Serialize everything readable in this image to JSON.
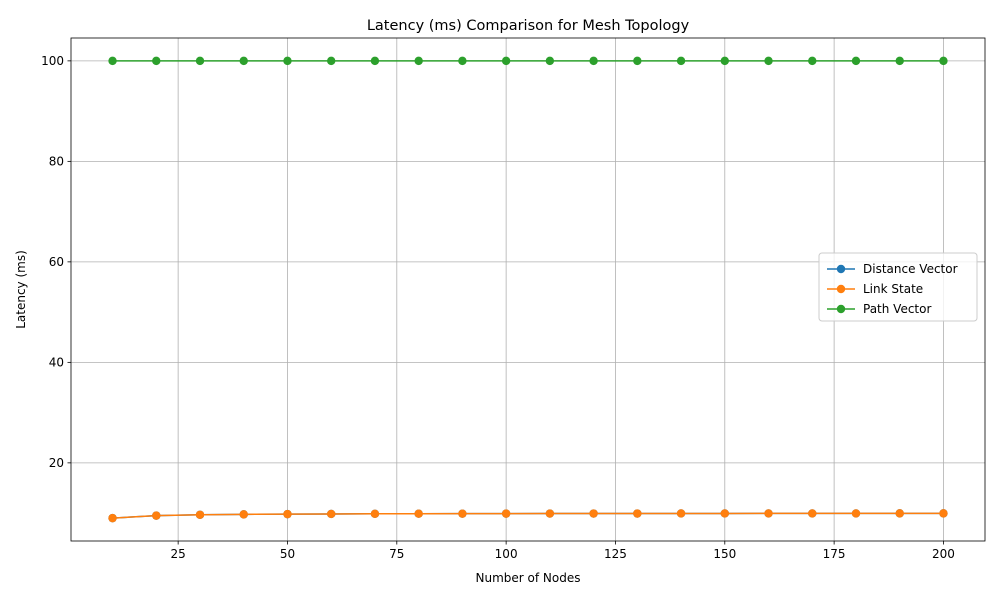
{
  "chart_data": {
    "type": "line",
    "title": "Latency (ms) Comparison for Mesh Topology",
    "xlabel": "Number of Nodes",
    "ylabel": "Latency (ms)",
    "xlim": [
      0.5,
      209.5
    ],
    "ylim": [
      4.45,
      104.55
    ],
    "xticks": [
      25,
      50,
      75,
      100,
      125,
      150,
      175,
      200
    ],
    "yticks": [
      20,
      40,
      60,
      80,
      100
    ],
    "grid": true,
    "legend_position": "center-right",
    "x": [
      10,
      20,
      30,
      40,
      50,
      60,
      70,
      80,
      90,
      100,
      110,
      120,
      130,
      140,
      150,
      160,
      170,
      180,
      190,
      200
    ],
    "series": [
      {
        "name": "Distance Vector",
        "color": "#1f77b4",
        "marker": "circle",
        "values": [
          9.0,
          9.5,
          9.67,
          9.75,
          9.8,
          9.83,
          9.86,
          9.88,
          9.89,
          9.9,
          9.91,
          9.92,
          9.92,
          9.93,
          9.93,
          9.94,
          9.94,
          9.94,
          9.95,
          9.95
        ]
      },
      {
        "name": "Link State",
        "color": "#ff7f0e",
        "marker": "circle",
        "values": [
          9.0,
          9.5,
          9.67,
          9.75,
          9.8,
          9.83,
          9.86,
          9.88,
          9.89,
          9.9,
          9.91,
          9.92,
          9.92,
          9.93,
          9.93,
          9.94,
          9.94,
          9.94,
          9.95,
          9.95
        ]
      },
      {
        "name": "Path Vector",
        "color": "#2ca02c",
        "marker": "circle",
        "values": [
          100,
          100,
          100,
          100,
          100,
          100,
          100,
          100,
          100,
          100,
          100,
          100,
          100,
          100,
          100,
          100,
          100,
          100,
          100,
          100
        ]
      }
    ]
  }
}
